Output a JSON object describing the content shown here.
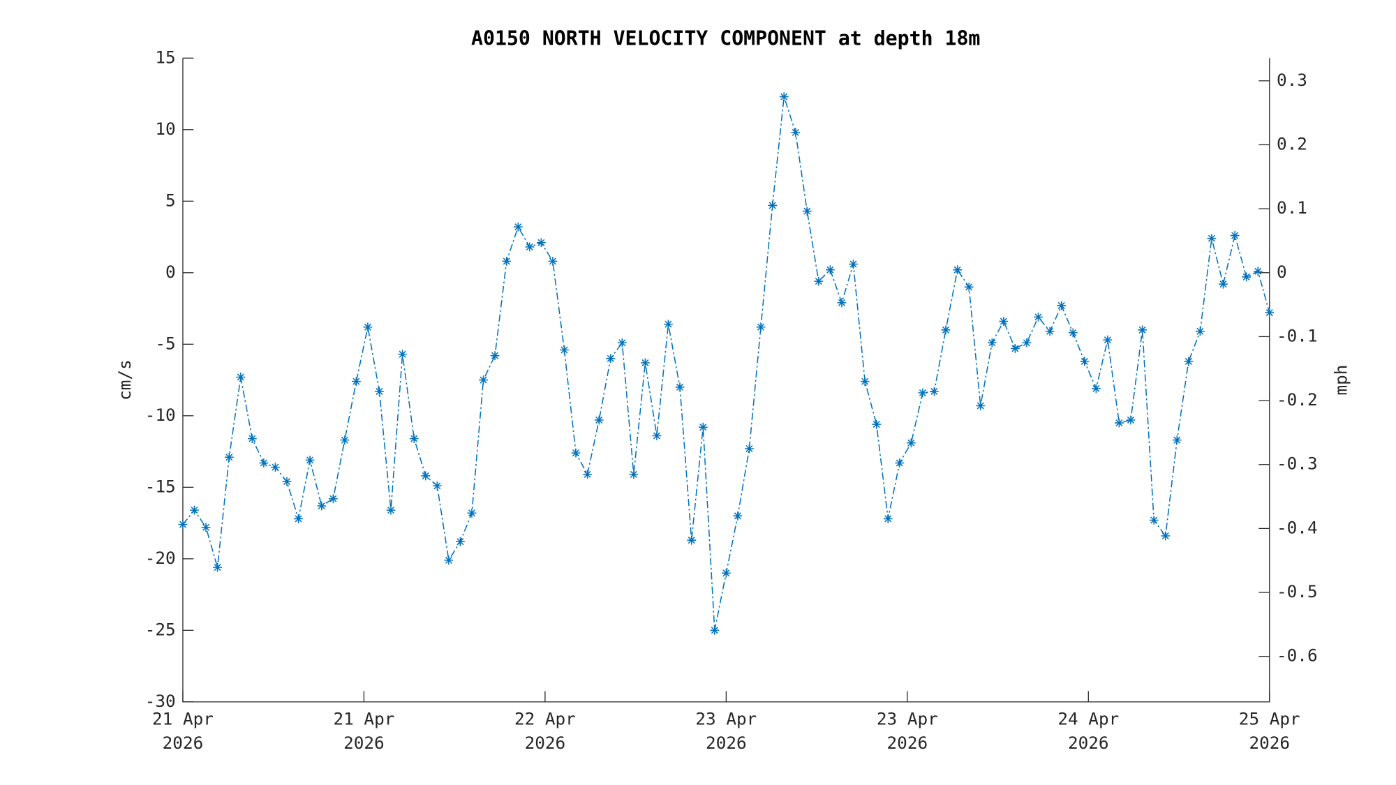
{
  "chart_data": {
    "type": "line",
    "title": "A0150 NORTH VELOCITY COMPONENT at depth 18m",
    "ylabel": "cm/s",
    "y2label": "mph",
    "x": [
      0,
      1.02,
      2.04,
      3.06,
      4.09,
      5.11,
      6.13,
      7.15,
      8.17,
      9.19,
      10.21,
      11.23,
      12.26,
      13.28,
      14.3,
      15.32,
      16.34,
      17.36,
      18.38,
      19.4,
      20.43,
      21.45,
      22.47,
      23.49,
      24.51,
      25.53,
      26.55,
      27.57,
      28.6,
      29.62,
      30.64,
      31.66,
      32.68,
      33.7,
      34.72,
      35.74,
      36.77,
      37.79,
      38.81,
      39.83,
      40.85,
      41.87,
      42.89,
      43.91,
      44.94,
      45.96,
      46.98,
      48,
      49.02,
      50.04,
      51.06,
      52.09,
      53.11,
      54.13,
      55.15,
      56.17,
      57.19,
      58.21,
      59.23,
      60.26,
      61.28,
      62.3,
      63.32,
      64.34,
      65.36,
      66.38,
      67.4,
      68.43,
      69.45,
      70.47,
      71.49,
      72.51,
      73.53,
      74.55,
      75.57,
      76.6,
      77.62,
      78.64,
      79.66,
      80.68,
      81.7,
      82.72,
      83.74,
      84.77,
      85.79,
      86.81,
      87.83,
      88.85,
      89.87,
      90.89,
      91.91,
      92.94,
      93.96,
      94.98,
      96
    ],
    "series": [
      {
        "name": "North velocity",
        "color": "#0072bd",
        "values": [
          -17.6,
          -16.6,
          -17.8,
          -20.6,
          -12.9,
          -7.3,
          -11.6,
          -13.3,
          -13.6,
          -14.6,
          -17.2,
          -13.1,
          -16.3,
          -15.8,
          -11.7,
          -7.6,
          -3.8,
          -8.3,
          -16.6,
          -5.7,
          -11.6,
          -14.2,
          -14.9,
          -20.1,
          -18.8,
          -16.8,
          -7.5,
          -5.8,
          0.8,
          3.2,
          1.8,
          2.1,
          0.8,
          -5.4,
          -12.6,
          -14.1,
          -10.3,
          -6.0,
          -4.9,
          -14.1,
          -6.3,
          -11.4,
          -3.6,
          -8.0,
          -18.7,
          -10.8,
          -25.0,
          -21.0,
          -17.0,
          -12.3,
          -3.8,
          4.7,
          12.3,
          9.8,
          4.3,
          -0.6,
          0.2,
          -2.1,
          0.6,
          -7.6,
          -10.6,
          -17.2,
          -13.3,
          -11.9,
          -8.4,
          -8.3,
          -4.0,
          0.2,
          -1.0,
          -9.3,
          -4.9,
          -3.4,
          -5.3,
          -4.9,
          -3.1,
          -4.1,
          -2.3,
          -4.2,
          -6.2,
          -8.1,
          -4.7,
          -10.5,
          -10.3,
          -4.0,
          -17.3,
          -18.4,
          -11.7,
          -6.2,
          -4.1,
          2.4,
          -0.8,
          2.6,
          -0.3,
          0.1,
          -2.8
        ]
      }
    ],
    "xlim": [
      0,
      96
    ],
    "xticks": [
      {
        "value": 0,
        "label": [
          "21 Apr",
          "2026"
        ]
      },
      {
        "value": 16,
        "label": [
          "21 Apr",
          "2026"
        ]
      },
      {
        "value": 32,
        "label": [
          "22 Apr",
          "2026"
        ]
      },
      {
        "value": 48,
        "label": [
          "23 Apr",
          "2026"
        ]
      },
      {
        "value": 64,
        "label": [
          "23 Apr",
          "2026"
        ]
      },
      {
        "value": 80,
        "label": [
          "24 Apr",
          "2026"
        ]
      },
      {
        "value": 96,
        "label": [
          "25 Apr",
          "2026"
        ]
      }
    ],
    "ylim": [
      -30,
      15
    ],
    "yticks": [
      -30,
      -25,
      -20,
      -15,
      -10,
      -5,
      0,
      5,
      10,
      15
    ],
    "y2lim": [
      -0.6711,
      0.3355
    ],
    "y2ticks": [
      -0.6,
      -0.5,
      -0.4,
      -0.3,
      -0.2,
      -0.1,
      0,
      0.1,
      0.2,
      0.3
    ],
    "grid": false
  }
}
